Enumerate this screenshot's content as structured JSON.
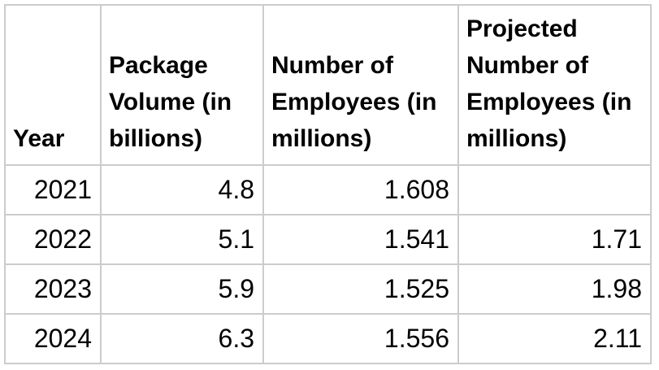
{
  "chart_data": {
    "type": "table",
    "columns": [
      "Year",
      "Package Volume (in billions)",
      "Number of Employees (in millions)",
      "Projected Number of Employees (in millions)"
    ],
    "rows": [
      {
        "year": 2021,
        "package_volume_billions": 4.8,
        "employees_millions": 1.608,
        "projected_employees_millions": null
      },
      {
        "year": 2022,
        "package_volume_billions": 5.1,
        "employees_millions": 1.541,
        "projected_employees_millions": 1.71
      },
      {
        "year": 2023,
        "package_volume_billions": 5.9,
        "employees_millions": 1.525,
        "projected_employees_millions": 1.98
      },
      {
        "year": 2024,
        "package_volume_billions": 6.3,
        "employees_millions": 1.556,
        "projected_employees_millions": 2.11
      }
    ]
  },
  "table": {
    "headers": [
      "Year",
      "Package Volume (in billions)",
      "Number of Employees (in millions)",
      "Projected Number of Employees (in millions)"
    ],
    "rows": [
      [
        "2021",
        "4.8",
        "1.608",
        ""
      ],
      [
        "2022",
        "5.1",
        "1.541",
        "1.71"
      ],
      [
        "2023",
        "5.9",
        "1.525",
        "1.98"
      ],
      [
        "2024",
        "6.3",
        "1.556",
        "2.11"
      ]
    ]
  },
  "colors": {
    "border": "#cccccc",
    "text": "#000000",
    "background": "#ffffff"
  }
}
